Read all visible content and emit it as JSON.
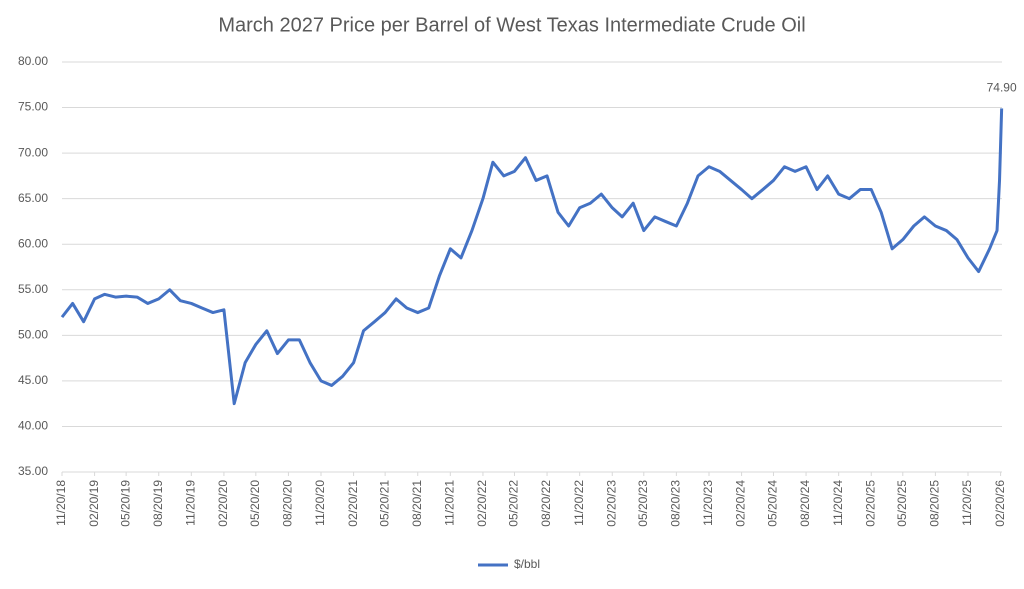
{
  "chart_data": {
    "type": "line",
    "title": "March 2027 Price per Barrel of West Texas Intermediate Crude Oil",
    "x": [
      "11/20/18",
      "12/20/18",
      "01/20/19",
      "02/20/19",
      "03/20/19",
      "04/20/19",
      "05/20/19",
      "06/20/19",
      "07/20/19",
      "08/20/19",
      "09/20/19",
      "10/20/19",
      "11/20/19",
      "12/20/19",
      "01/20/20",
      "02/20/20",
      "03/20/20",
      "04/20/20",
      "05/20/20",
      "06/20/20",
      "07/20/20",
      "08/20/20",
      "09/20/20",
      "10/20/20",
      "11/20/20",
      "12/20/20",
      "01/20/21",
      "02/20/21",
      "03/20/21",
      "04/20/21",
      "05/20/21",
      "06/20/21",
      "07/20/21",
      "08/20/21",
      "09/20/21",
      "10/20/21",
      "11/20/21",
      "12/20/21",
      "01/20/22",
      "02/20/22",
      "03/20/22",
      "04/20/22",
      "05/20/22",
      "06/20/22",
      "07/20/22",
      "08/20/22",
      "09/20/22",
      "10/20/22",
      "11/20/22",
      "12/20/22",
      "01/20/23",
      "02/20/23",
      "03/20/23",
      "04/20/23",
      "05/20/23",
      "06/20/23",
      "07/20/23",
      "08/20/23",
      "09/20/23",
      "10/20/23",
      "11/20/23",
      "12/20/23",
      "01/20/24",
      "02/20/24",
      "03/20/24",
      "04/20/24",
      "05/20/24",
      "06/20/24",
      "07/20/24",
      "08/20/24",
      "09/20/24",
      "10/20/24",
      "11/20/24",
      "12/20/24",
      "01/20/25",
      "02/20/25",
      "03/20/25",
      "04/20/25",
      "05/20/25",
      "06/20/25",
      "07/20/25",
      "08/20/25",
      "09/20/25",
      "10/20/25",
      "11/20/25",
      "12/20/25",
      "01/20/26",
      "02/10/26",
      "02/17/26",
      "02/23/26"
    ],
    "series": [
      {
        "name": "$/bbl",
        "color": "#4472c4",
        "values": [
          52.0,
          53.5,
          51.5,
          54.0,
          54.5,
          54.2,
          54.3,
          54.2,
          53.5,
          54.0,
          55.0,
          53.8,
          53.5,
          53.0,
          52.5,
          52.8,
          42.5,
          47.0,
          49.0,
          50.5,
          48.0,
          49.5,
          49.5,
          47.0,
          45.0,
          44.5,
          45.5,
          47.0,
          50.5,
          51.5,
          52.5,
          54.0,
          53.0,
          52.5,
          53.0,
          56.5,
          59.5,
          58.5,
          61.5,
          65.0,
          69.0,
          67.5,
          68.0,
          69.5,
          67.0,
          67.5,
          63.5,
          62.0,
          64.0,
          64.5,
          65.5,
          64.0,
          63.0,
          64.5,
          61.5,
          63.0,
          62.5,
          62.0,
          64.5,
          67.5,
          68.5,
          68.0,
          67.0,
          66.0,
          65.0,
          66.0,
          67.0,
          68.5,
          68.0,
          68.5,
          66.0,
          67.5,
          65.5,
          65.0,
          66.0,
          66.0,
          63.5,
          59.5,
          60.5,
          62.0,
          63.0,
          62.0,
          61.5,
          60.5,
          58.5,
          57.0,
          59.5,
          61.5,
          67.0,
          74.9
        ],
        "value_labels": [
          null,
          null,
          null,
          null,
          null,
          null,
          null,
          null,
          null,
          null,
          null,
          null,
          null,
          null,
          null,
          null,
          null,
          null,
          null,
          null,
          null,
          null,
          null,
          null,
          null,
          null,
          null,
          null,
          null,
          null,
          null,
          null,
          null,
          null,
          null,
          null,
          null,
          null,
          null,
          null,
          null,
          null,
          null,
          null,
          null,
          null,
          null,
          null,
          null,
          null,
          null,
          null,
          null,
          null,
          null,
          null,
          null,
          null,
          null,
          null,
          null,
          null,
          null,
          null,
          null,
          null,
          null,
          null,
          null,
          null,
          null,
          null,
          null,
          null,
          null,
          null,
          null,
          null,
          null,
          null,
          null,
          null,
          null,
          null,
          null,
          null,
          null,
          null,
          null,
          "74.90"
        ]
      }
    ],
    "xlim": [
      "11/20/18",
      "02/24/26"
    ],
    "xticks": [
      "11/20/18",
      "02/20/19",
      "05/20/19",
      "08/20/19",
      "11/20/19",
      "02/20/20",
      "05/20/20",
      "08/20/20",
      "11/20/20",
      "02/20/21",
      "05/20/21",
      "08/20/21",
      "11/20/21",
      "02/20/22",
      "05/20/22",
      "08/20/22",
      "11/20/22",
      "02/20/23",
      "05/20/23",
      "08/20/23",
      "11/20/23",
      "02/20/24",
      "05/20/24",
      "08/20/24",
      "11/20/24",
      "02/20/25",
      "05/20/25",
      "08/20/25",
      "11/20/25",
      "02/20/26"
    ],
    "ylim": [
      35,
      80
    ],
    "yticks": [
      {
        "value": 35,
        "label": "35.00"
      },
      {
        "value": 40,
        "label": "40.00"
      },
      {
        "value": 45,
        "label": "45.00"
      },
      {
        "value": 50,
        "label": "50.00"
      },
      {
        "value": 55,
        "label": "55.00"
      },
      {
        "value": 60,
        "label": "60.00"
      },
      {
        "value": 65,
        "label": "65.00"
      },
      {
        "value": 70,
        "label": "70.00"
      },
      {
        "value": 75,
        "label": "75.00"
      },
      {
        "value": 80,
        "label": "80.00"
      }
    ],
    "grid": true,
    "legend": "bottom"
  }
}
